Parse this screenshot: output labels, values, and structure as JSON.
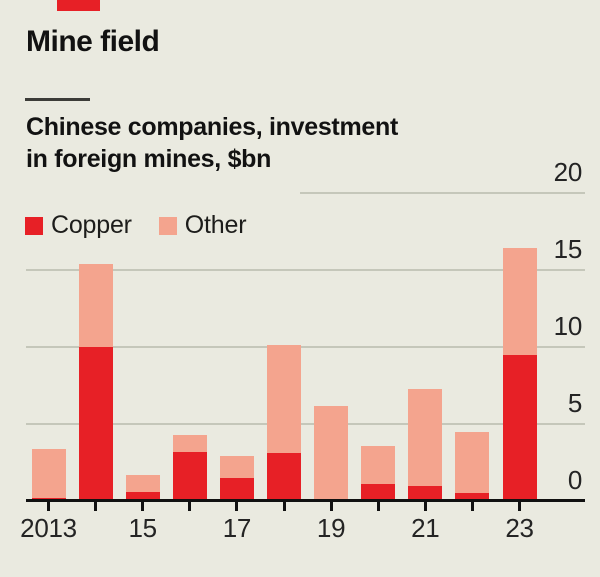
{
  "header": {
    "title": "Mine field",
    "subtitle_line1": "Chinese companies, investment",
    "subtitle_line2": "in foreign mines, $bn"
  },
  "legend": {
    "copper": "Copper",
    "other": "Other"
  },
  "colors": {
    "background": "#EAEAE0",
    "copper_red": "#E72026",
    "other_salmon": "#F4A48E",
    "gridline": "#C5C7BA",
    "axis": "#111111",
    "text": "#121212"
  },
  "chart_data": {
    "type": "bar",
    "stacked": true,
    "title": "Mine field",
    "subtitle": "Chinese companies, investment in foreign mines, $bn",
    "unit": "$bn",
    "categories": [
      2013,
      2014,
      2015,
      2016,
      2017,
      2018,
      2019,
      2020,
      2021,
      2022,
      2023
    ],
    "series": [
      {
        "name": "Copper",
        "color": "#E72026",
        "values": [
          0.2,
          10.0,
          0.6,
          3.2,
          1.5,
          3.1,
          0,
          1.1,
          1.0,
          0.55,
          9.5
        ]
      },
      {
        "name": "Other",
        "color": "#F4A48E",
        "values": [
          3.2,
          5.4,
          1.1,
          1.1,
          1.4,
          7.0,
          6.2,
          2.5,
          6.3,
          3.95,
          6.9
        ]
      }
    ],
    "ylim": [
      0,
      20
    ],
    "y_ticks": [
      0,
      5,
      10,
      15,
      20
    ],
    "x_tick_labels": [
      "2013",
      "15",
      "17",
      "19",
      "21",
      "23"
    ],
    "grid": true,
    "legend_position": "top-left"
  }
}
